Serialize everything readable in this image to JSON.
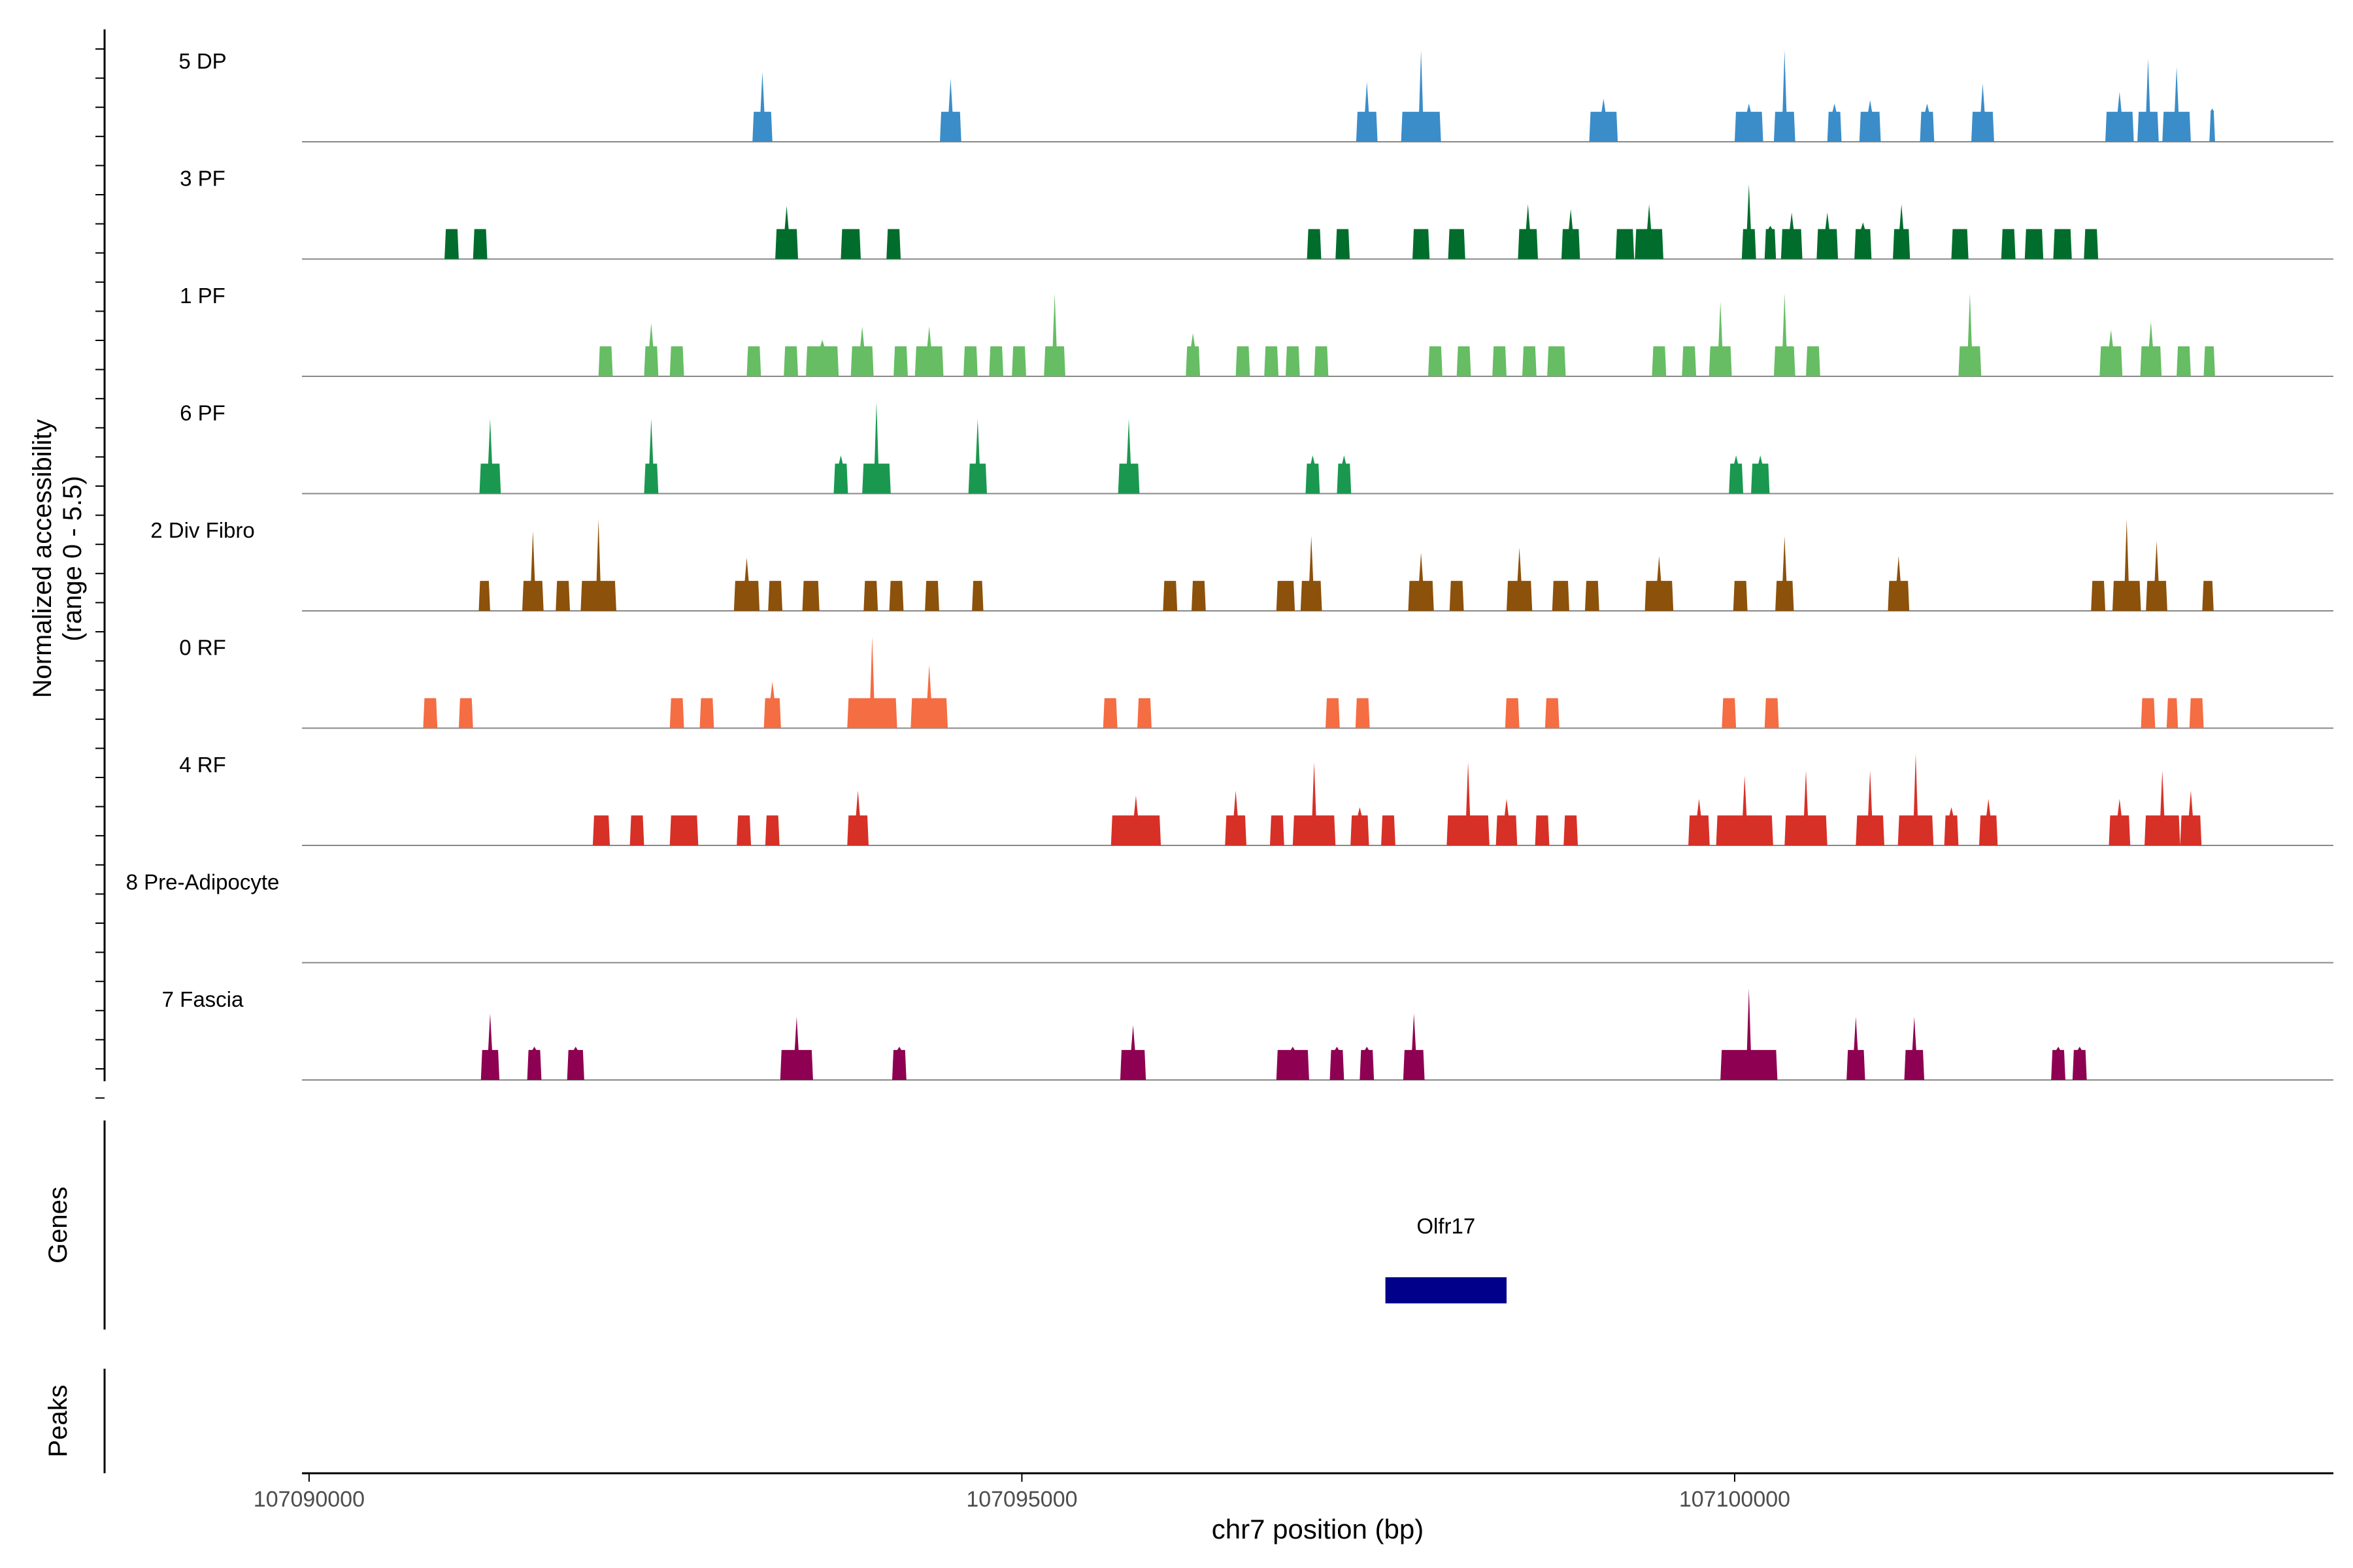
{
  "chart_data": {
    "type": "area",
    "subtype": "genome coverage tracks",
    "y_axis_title_line1": "Normalized accessibility",
    "y_axis_title_line2": "(range 0 - 5.5)",
    "y_range": [
      0,
      5.5
    ],
    "x_axis_title": "chr7 position (bp)",
    "x_range": [
      107089950,
      107104200
    ],
    "x_ticks": [
      {
        "value": 107090000,
        "label": "107090000"
      },
      {
        "value": 107095000,
        "label": "107095000"
      },
      {
        "value": 107100000,
        "label": "107100000"
      }
    ],
    "tracks": [
      {
        "name": "5 DP",
        "color": "#3A8DC8",
        "peaks": [
          [
            107093180,
            140,
            4.2
          ],
          [
            107094500,
            150,
            3.8
          ],
          [
            107097420,
            150,
            3.6
          ],
          [
            107097800,
            280,
            5.5
          ],
          [
            107099080,
            200,
            2.6
          ],
          [
            107100100,
            200,
            2.3
          ],
          [
            107100350,
            150,
            5.5
          ],
          [
            107100700,
            100,
            2.3
          ],
          [
            107100950,
            150,
            2.5
          ],
          [
            107101350,
            100,
            2.3
          ],
          [
            107101740,
            160,
            3.5
          ],
          [
            107102700,
            200,
            3.0
          ],
          [
            107102900,
            150,
            5.0
          ],
          [
            107103100,
            200,
            4.5
          ],
          [
            107103350,
            40,
            2.0
          ]
        ]
      },
      {
        "name": "3 PF",
        "color": "#006D2C",
        "peaks": [
          [
            107091000,
            100,
            1.8
          ],
          [
            107091200,
            100,
            1.8
          ],
          [
            107093350,
            160,
            3.2
          ],
          [
            107093800,
            140,
            1.8
          ],
          [
            107094100,
            100,
            1.8
          ],
          [
            107097050,
            100,
            1.8
          ],
          [
            107097250,
            100,
            1.8
          ],
          [
            107097800,
            120,
            1.8
          ],
          [
            107098050,
            120,
            1.8
          ],
          [
            107098550,
            140,
            3.3
          ],
          [
            107098850,
            130,
            3.0
          ],
          [
            107099230,
            130,
            1.8
          ],
          [
            107099400,
            200,
            3.3
          ],
          [
            107100100,
            100,
            4.5
          ],
          [
            107100250,
            80,
            2.0
          ],
          [
            107100400,
            150,
            2.8
          ],
          [
            107100650,
            150,
            2.8
          ],
          [
            107100900,
            120,
            2.2
          ],
          [
            107101170,
            120,
            3.3
          ],
          [
            107101580,
            120,
            1.8
          ],
          [
            107101920,
            100,
            1.8
          ],
          [
            107102100,
            130,
            1.8
          ],
          [
            107102300,
            130,
            1.8
          ],
          [
            107102500,
            100,
            1.8
          ]
        ]
      },
      {
        "name": "1 PF",
        "color": "#66BD63",
        "peaks": [
          [
            107092080,
            100,
            1.8
          ],
          [
            107092400,
            100,
            3.2
          ],
          [
            107092580,
            100,
            1.8
          ],
          [
            107093120,
            100,
            1.8
          ],
          [
            107093380,
            100,
            1.8
          ],
          [
            107093600,
            230,
            2.2
          ],
          [
            107093880,
            160,
            3.0
          ],
          [
            107094150,
            100,
            1.8
          ],
          [
            107094350,
            200,
            3.0
          ],
          [
            107094640,
            100,
            1.8
          ],
          [
            107094820,
            100,
            1.8
          ],
          [
            107094980,
            100,
            1.8
          ],
          [
            107095230,
            150,
            5.0
          ],
          [
            107096200,
            100,
            2.6
          ],
          [
            107096550,
            100,
            1.8
          ],
          [
            107096750,
            100,
            1.8
          ],
          [
            107096900,
            100,
            1.8
          ],
          [
            107097100,
            100,
            1.8
          ],
          [
            107097900,
            100,
            1.8
          ],
          [
            107098100,
            100,
            1.8
          ],
          [
            107098350,
            100,
            1.8
          ],
          [
            107098560,
            100,
            1.8
          ],
          [
            107098750,
            130,
            1.8
          ],
          [
            107099470,
            100,
            1.8
          ],
          [
            107099680,
            100,
            1.8
          ],
          [
            107099900,
            160,
            4.5
          ],
          [
            107100350,
            150,
            5.0
          ],
          [
            107100550,
            100,
            1.8
          ],
          [
            107101650,
            160,
            5.0
          ],
          [
            107102640,
            160,
            2.8
          ],
          [
            107102920,
            150,
            3.3
          ],
          [
            107103150,
            100,
            1.8
          ],
          [
            107103330,
            80,
            1.8
          ]
        ]
      },
      {
        "name": "6 PF",
        "color": "#1A9850",
        "peaks": [
          [
            107091270,
            150,
            4.5
          ],
          [
            107092400,
            100,
            4.5
          ],
          [
            107093730,
            100,
            2.3
          ],
          [
            107093980,
            200,
            5.5
          ],
          [
            107094690,
            130,
            4.5
          ],
          [
            107095750,
            150,
            4.5
          ],
          [
            107097040,
            100,
            2.3
          ],
          [
            107097260,
            100,
            2.3
          ],
          [
            107100010,
            100,
            2.3
          ],
          [
            107100180,
            130,
            2.3
          ]
        ]
      },
      {
        "name": "2 Div Fibro",
        "color": "#8C510A",
        "peaks": [
          [
            107091230,
            80,
            1.8
          ],
          [
            107091570,
            150,
            4.8
          ],
          [
            107091780,
            100,
            1.8
          ],
          [
            107092030,
            250,
            5.5
          ],
          [
            107093070,
            180,
            3.2
          ],
          [
            107093270,
            100,
            1.8
          ],
          [
            107093520,
            120,
            1.8
          ],
          [
            107093940,
            100,
            1.8
          ],
          [
            107094120,
            100,
            1.8
          ],
          [
            107094370,
            100,
            1.8
          ],
          [
            107094690,
            80,
            1.8
          ],
          [
            107096040,
            100,
            1.8
          ],
          [
            107096240,
            100,
            1.8
          ],
          [
            107096850,
            130,
            1.8
          ],
          [
            107097030,
            150,
            4.5
          ],
          [
            107097800,
            180,
            3.5
          ],
          [
            107098050,
            100,
            1.8
          ],
          [
            107098490,
            180,
            3.8
          ],
          [
            107098780,
            120,
            1.8
          ],
          [
            107099000,
            100,
            1.8
          ],
          [
            107099470,
            200,
            3.3
          ],
          [
            107100040,
            100,
            1.8
          ],
          [
            107100350,
            130,
            4.5
          ],
          [
            107101150,
            150,
            3.3
          ],
          [
            107102550,
            100,
            1.8
          ],
          [
            107102750,
            200,
            5.5
          ],
          [
            107102960,
            150,
            4.2
          ],
          [
            107103320,
            80,
            1.8
          ]
        ]
      },
      {
        "name": "0 RF",
        "color": "#F46D43",
        "peaks": [
          [
            107090850,
            100,
            1.8
          ],
          [
            107091100,
            100,
            1.8
          ],
          [
            107092580,
            100,
            1.8
          ],
          [
            107092790,
            100,
            1.8
          ],
          [
            107093250,
            120,
            2.8
          ],
          [
            107093950,
            350,
            5.5
          ],
          [
            107094350,
            260,
            3.8
          ],
          [
            107095620,
            100,
            1.8
          ],
          [
            107095860,
            100,
            1.8
          ],
          [
            107097180,
            100,
            1.8
          ],
          [
            107097390,
            100,
            1.8
          ],
          [
            107098440,
            100,
            1.8
          ],
          [
            107098720,
            100,
            1.8
          ],
          [
            107099960,
            100,
            1.8
          ],
          [
            107100260,
            100,
            1.8
          ],
          [
            107102900,
            100,
            1.8
          ],
          [
            107103070,
            80,
            1.8
          ],
          [
            107103240,
            100,
            1.8
          ]
        ]
      },
      {
        "name": "4 RF",
        "color": "#D73027",
        "peaks": [
          [
            107092050,
            120,
            1.8
          ],
          [
            107092300,
            100,
            1.8
          ],
          [
            107092630,
            200,
            1.8
          ],
          [
            107093050,
            100,
            1.8
          ],
          [
            107093250,
            100,
            1.8
          ],
          [
            107093850,
            150,
            3.3
          ],
          [
            107095800,
            350,
            3.0
          ],
          [
            107096500,
            150,
            3.3
          ],
          [
            107096790,
            100,
            1.8
          ],
          [
            107097050,
            300,
            5.0
          ],
          [
            107097370,
            130,
            2.3
          ],
          [
            107097570,
            100,
            1.8
          ],
          [
            107098130,
            300,
            5.0
          ],
          [
            107098400,
            150,
            2.8
          ],
          [
            107098650,
            100,
            1.8
          ],
          [
            107098850,
            100,
            1.8
          ],
          [
            107099750,
            150,
            2.8
          ],
          [
            107100070,
            400,
            4.2
          ],
          [
            107100500,
            300,
            4.5
          ],
          [
            107100950,
            200,
            4.5
          ],
          [
            107101270,
            250,
            5.5
          ],
          [
            107101520,
            100,
            2.3
          ],
          [
            107101780,
            130,
            2.8
          ],
          [
            107102700,
            150,
            2.8
          ],
          [
            107103000,
            250,
            4.5
          ],
          [
            107103200,
            150,
            3.3
          ]
        ]
      },
      {
        "name": "8 Pre-Adipocyte",
        "color": "#999999",
        "peaks": []
      },
      {
        "name": "7 Fascia",
        "color": "#8E0152",
        "peaks": [
          [
            107091270,
            130,
            4.0
          ],
          [
            107091580,
            100,
            2.0
          ],
          [
            107091870,
            120,
            2.0
          ],
          [
            107093420,
            230,
            3.8
          ],
          [
            107094140,
            100,
            2.0
          ],
          [
            107095780,
            180,
            3.3
          ],
          [
            107096900,
            230,
            2.0
          ],
          [
            107097210,
            100,
            2.0
          ],
          [
            107097420,
            100,
            2.0
          ],
          [
            107097750,
            150,
            4.0
          ],
          [
            107100100,
            400,
            5.5
          ],
          [
            107100850,
            130,
            3.8
          ],
          [
            107101260,
            140,
            3.8
          ],
          [
            107102270,
            100,
            2.0
          ],
          [
            107102420,
            100,
            2.0
          ]
        ]
      }
    ],
    "genes": {
      "panel_label": "Genes",
      "items": [
        {
          "name": "Olfr17",
          "start": 107097550,
          "end": 107098400,
          "color": "#00008B"
        }
      ]
    },
    "peaks_panel": {
      "panel_label": "Peaks",
      "items": []
    }
  }
}
